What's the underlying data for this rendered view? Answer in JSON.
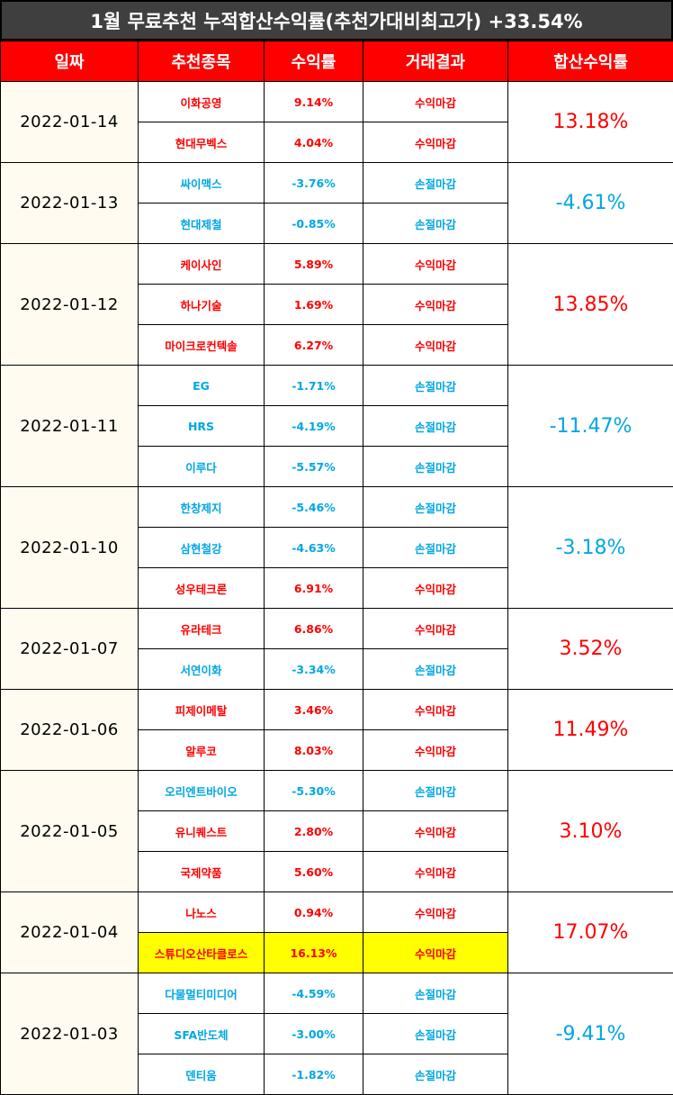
{
  "title": "1월 무료추천 누적합산수익률(추천가대비최고가) +33.54%",
  "headers": [
    "일짜",
    "추천종목",
    "수익률",
    "거래결과",
    "합산수익률"
  ],
  "colors": {
    "positive": "#ff0000",
    "negative": "#00a6e4",
    "highlight": "#ffff00",
    "header_bg": "#ff0000",
    "title_bg": "#3f3f3f"
  },
  "groups": [
    {
      "date": "2022-01-14",
      "total": "13.18%",
      "total_sign": "pos",
      "rows": [
        {
          "name": "이화공영",
          "rate": "9.14%",
          "result": "수익마감",
          "sign": "pos"
        },
        {
          "name": "현대무벡스",
          "rate": "4.04%",
          "result": "수익마감",
          "sign": "pos"
        }
      ]
    },
    {
      "date": "2022-01-13",
      "total": "-4.61%",
      "total_sign": "neg",
      "rows": [
        {
          "name": "싸이맥스",
          "rate": "-3.76%",
          "result": "손절마감",
          "sign": "neg"
        },
        {
          "name": "현대제철",
          "rate": "-0.85%",
          "result": "손절마감",
          "sign": "neg"
        }
      ]
    },
    {
      "date": "2022-01-12",
      "total": "13.85%",
      "total_sign": "pos",
      "rows": [
        {
          "name": "케이사인",
          "rate": "5.89%",
          "result": "수익마감",
          "sign": "pos"
        },
        {
          "name": "하나기술",
          "rate": "1.69%",
          "result": "수익마감",
          "sign": "pos"
        },
        {
          "name": "마이크로컨텍솔",
          "rate": "6.27%",
          "result": "수익마감",
          "sign": "pos"
        }
      ]
    },
    {
      "date": "2022-01-11",
      "total": "-11.47%",
      "total_sign": "neg",
      "rows": [
        {
          "name": "EG",
          "rate": "-1.71%",
          "result": "손절마감",
          "sign": "neg"
        },
        {
          "name": "HRS",
          "rate": "-4.19%",
          "result": "손절마감",
          "sign": "neg"
        },
        {
          "name": "이루다",
          "rate": "-5.57%",
          "result": "손절마감",
          "sign": "neg"
        }
      ]
    },
    {
      "date": "2022-01-10",
      "total": "-3.18%",
      "total_sign": "neg",
      "rows": [
        {
          "name": "한창제지",
          "rate": "-5.46%",
          "result": "손절마감",
          "sign": "neg"
        },
        {
          "name": "삼현철강",
          "rate": "-4.63%",
          "result": "손절마감",
          "sign": "neg"
        },
        {
          "name": "성우테크론",
          "rate": "6.91%",
          "result": "수익마감",
          "sign": "pos"
        }
      ]
    },
    {
      "date": "2022-01-07",
      "total": "3.52%",
      "total_sign": "pos",
      "rows": [
        {
          "name": "유라테크",
          "rate": "6.86%",
          "result": "수익마감",
          "sign": "pos"
        },
        {
          "name": "서연이화",
          "rate": "-3.34%",
          "result": "손절마감",
          "sign": "neg"
        }
      ]
    },
    {
      "date": "2022-01-06",
      "total": "11.49%",
      "total_sign": "pos",
      "rows": [
        {
          "name": "피제이메탈",
          "rate": "3.46%",
          "result": "수익마감",
          "sign": "pos"
        },
        {
          "name": "알루코",
          "rate": "8.03%",
          "result": "수익마감",
          "sign": "pos"
        }
      ]
    },
    {
      "date": "2022-01-05",
      "total": "3.10%",
      "total_sign": "pos",
      "rows": [
        {
          "name": "오리엔트바이오",
          "rate": "-5.30%",
          "result": "손절마감",
          "sign": "neg"
        },
        {
          "name": "유니퀘스트",
          "rate": "2.80%",
          "result": "수익마감",
          "sign": "pos"
        },
        {
          "name": "국제약품",
          "rate": "5.60%",
          "result": "수익마감",
          "sign": "pos"
        }
      ]
    },
    {
      "date": "2022-01-04",
      "total": "17.07%",
      "total_sign": "pos",
      "rows": [
        {
          "name": "나노스",
          "rate": "0.94%",
          "result": "수익마감",
          "sign": "pos"
        },
        {
          "name": "스튜디오산타클로스",
          "rate": "16.13%",
          "result": "수익마감",
          "sign": "pos",
          "highlight": true
        }
      ]
    },
    {
      "date": "2022-01-03",
      "total": "-9.41%",
      "total_sign": "neg",
      "rows": [
        {
          "name": "다물멀티미디어",
          "rate": "-4.59%",
          "result": "손절마감",
          "sign": "neg"
        },
        {
          "name": "SFA반도체",
          "rate": "-3.00%",
          "result": "손절마감",
          "sign": "neg"
        },
        {
          "name": "덴티움",
          "rate": "-1.82%",
          "result": "손절마감",
          "sign": "neg"
        }
      ]
    }
  ]
}
